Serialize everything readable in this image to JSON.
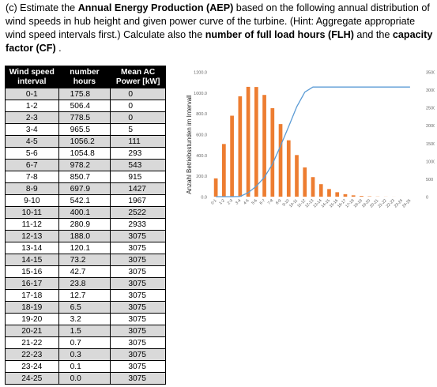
{
  "question": {
    "prefix": "(c) Estimate the ",
    "aep_bold": "Annual Energy Production (AEP)",
    "mid1": " based on the following annual distribution of wind speeds in hub height and given power curve of the turbine. (Hint: Aggregate appropriate wind speed intervals first.) Calculate also the ",
    "flh_bold": "number of full load hours (FLH)",
    "mid2": " and the ",
    "cf_bold": "capacity factor (CF)",
    "suffix": " ."
  },
  "table": {
    "headers": [
      "Wind speed interval",
      "number hours",
      "Mean AC Power [kW]"
    ],
    "rows": [
      [
        "0-1",
        "175.8",
        "0"
      ],
      [
        "1-2",
        "506.4",
        "0"
      ],
      [
        "2-3",
        "778.5",
        "0"
      ],
      [
        "3-4",
        "965.5",
        "5"
      ],
      [
        "4-5",
        "1056.2",
        "111"
      ],
      [
        "5-6",
        "1054.8",
        "293"
      ],
      [
        "6-7",
        "978.2",
        "543"
      ],
      [
        "7-8",
        "850.7",
        "915"
      ],
      [
        "8-9",
        "697.9",
        "1427"
      ],
      [
        "9-10",
        "542.1",
        "1967"
      ],
      [
        "10-11",
        "400.1",
        "2522"
      ],
      [
        "11-12",
        "280.9",
        "2933"
      ],
      [
        "12-13",
        "188.0",
        "3075"
      ],
      [
        "13-14",
        "120.1",
        "3075"
      ],
      [
        "14-15",
        "73.2",
        "3075"
      ],
      [
        "15-16",
        "42.7",
        "3075"
      ],
      [
        "16-17",
        "23.8",
        "3075"
      ],
      [
        "17-18",
        "12.7",
        "3075"
      ],
      [
        "18-19",
        "6.5",
        "3075"
      ],
      [
        "19-20",
        "3.2",
        "3075"
      ],
      [
        "20-21",
        "1.5",
        "3075"
      ],
      [
        "21-22",
        "0.7",
        "3075"
      ],
      [
        "22-23",
        "0.3",
        "3075"
      ],
      [
        "23-24",
        "0.1",
        "3075"
      ],
      [
        "24-25",
        "0.0",
        "3075"
      ]
    ]
  },
  "chart_data": {
    "type": "bar",
    "title": "",
    "xlabel": "",
    "ylabel": "Anzahl Betriebsstunden im Intervall",
    "categories": [
      "0-1",
      "1-2",
      "2-3",
      "3-4",
      "4-5",
      "5-6",
      "6-7",
      "7-8",
      "8-9",
      "9-10",
      "10-11",
      "11-12",
      "12-13",
      "13-14",
      "14-15",
      "15-16",
      "16-17",
      "17-18",
      "18-19",
      "19-20",
      "20-21",
      "21-22",
      "22-23",
      "23-24",
      "24-25"
    ],
    "series": [
      {
        "type": "bar",
        "axis": "left",
        "color": "#ed7d31",
        "values": [
          175.8,
          506.4,
          778.5,
          965.5,
          1056.2,
          1054.8,
          978.2,
          850.7,
          697.9,
          542.1,
          400.1,
          280.9,
          188.0,
          120.1,
          73.2,
          42.7,
          23.8,
          12.7,
          6.5,
          3.2,
          1.5,
          0.7,
          0.3,
          0.1,
          0.0
        ]
      },
      {
        "type": "line",
        "axis": "right",
        "color": "#5b9bd5",
        "values": [
          0,
          0,
          0,
          5,
          111,
          293,
          543,
          915,
          1427,
          1967,
          2522,
          2933,
          3075,
          3075,
          3075,
          3075,
          3075,
          3075,
          3075,
          3075,
          3075,
          3075,
          3075,
          3075,
          3075
        ]
      }
    ],
    "ylim": [
      0,
      1200
    ],
    "yticks": [
      "0.0",
      "200.0",
      "400.0",
      "600.0",
      "800.0",
      "1000.0",
      "1200.0"
    ],
    "y2lim": [
      0,
      3500
    ],
    "y2ticks": [
      "0",
      "500",
      "1000",
      "1500",
      "2000",
      "2500",
      "3000",
      "3500"
    ],
    "grid": false,
    "legend": "none"
  },
  "colors": {
    "bar": "#ed7d31",
    "line": "#5b9bd5",
    "header_bg": "#000000",
    "row_shade": "#d9d9d9"
  }
}
